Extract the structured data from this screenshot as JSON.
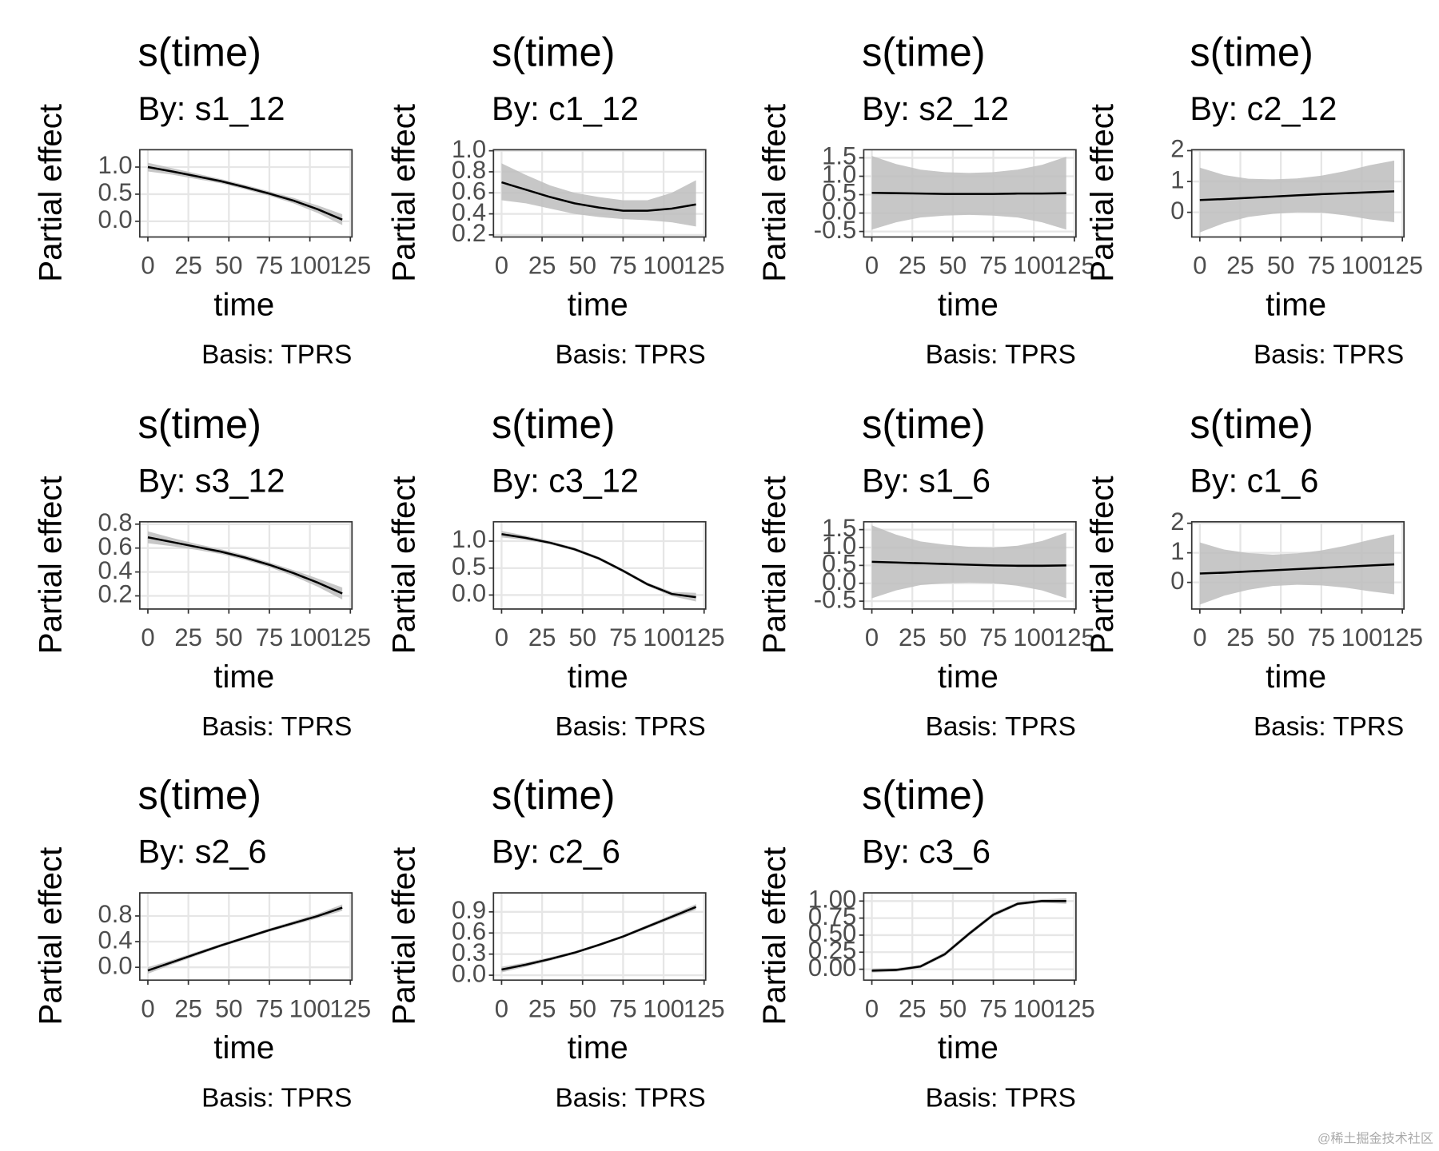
{
  "chart_data": [
    {
      "type": "line",
      "title": "s(time)",
      "subtitle": "By: s1_12",
      "xlabel": "time",
      "ylabel": "Partial effect",
      "caption": "Basis: TPRS",
      "color": "#000000",
      "band_color": "#bdbdbd",
      "grid": true,
      "x": [
        0,
        15,
        30,
        45,
        60,
        75,
        90,
        105,
        120
      ],
      "values": [
        1.0,
        0.92,
        0.83,
        0.74,
        0.63,
        0.51,
        0.38,
        0.22,
        0.03
      ],
      "lower": [
        0.92,
        0.86,
        0.78,
        0.7,
        0.59,
        0.47,
        0.33,
        0.15,
        -0.07
      ],
      "upper": [
        1.08,
        0.98,
        0.88,
        0.78,
        0.67,
        0.55,
        0.43,
        0.29,
        0.13
      ],
      "xlim": [
        -5,
        126
      ],
      "xticks": [
        0,
        25,
        50,
        75,
        100,
        125
      ],
      "ylim": [
        -0.29,
        1.32
      ],
      "yticks": [
        {
          "value": 0,
          "label": "0.0"
        },
        0.5,
        {
          "value": 1,
          "label": "1.0"
        }
      ]
    },
    {
      "type": "line",
      "title": "s(time)",
      "subtitle": "By: c1_12",
      "xlabel": "time",
      "ylabel": "Partial effect",
      "caption": "Basis: TPRS",
      "color": "#000000",
      "band_color": "#bdbdbd",
      "grid": true,
      "x": [
        0,
        15,
        30,
        45,
        60,
        75,
        90,
        105,
        120
      ],
      "values": [
        0.7,
        0.63,
        0.56,
        0.5,
        0.46,
        0.43,
        0.43,
        0.45,
        0.49
      ],
      "lower": [
        0.53,
        0.5,
        0.45,
        0.4,
        0.37,
        0.35,
        0.34,
        0.32,
        0.28
      ],
      "upper": [
        0.88,
        0.77,
        0.67,
        0.6,
        0.56,
        0.53,
        0.53,
        0.6,
        0.72
      ],
      "xlim": [
        -5,
        126
      ],
      "xticks": [
        0,
        25,
        50,
        75,
        100,
        125
      ],
      "ylim": [
        0.18,
        1.01
      ],
      "yticks": [
        0.2,
        0.4,
        0.6,
        0.8,
        {
          "value": 1,
          "label": "1.0"
        }
      ]
    },
    {
      "type": "line",
      "title": "s(time)",
      "subtitle": "By: s2_12",
      "xlabel": "time",
      "ylabel": "Partial effect",
      "caption": "Basis: TPRS",
      "color": "#000000",
      "band_color": "#bdbdbd",
      "grid": true,
      "x": [
        0,
        15,
        30,
        45,
        60,
        75,
        90,
        105,
        120
      ],
      "values": [
        0.55,
        0.54,
        0.53,
        0.52,
        0.52,
        0.52,
        0.53,
        0.53,
        0.54
      ],
      "lower": [
        -0.45,
        -0.25,
        -0.12,
        -0.07,
        -0.05,
        -0.07,
        -0.12,
        -0.25,
        -0.45
      ],
      "upper": [
        1.55,
        1.33,
        1.18,
        1.11,
        1.09,
        1.11,
        1.18,
        1.31,
        1.53
      ],
      "xlim": [
        -5,
        126
      ],
      "xticks": [
        0,
        25,
        50,
        75,
        100,
        125
      ],
      "ylim": [
        -0.65,
        1.72
      ],
      "yticks": [
        -0.5,
        {
          "value": 0,
          "label": "0.0"
        },
        0.5,
        {
          "value": 1,
          "label": "1.0"
        },
        1.5
      ]
    },
    {
      "type": "line",
      "title": "s(time)",
      "subtitle": "By: c2_12",
      "xlabel": "time",
      "ylabel": "Partial effect",
      "caption": "Basis: TPRS",
      "color": "#000000",
      "band_color": "#bdbdbd",
      "grid": true,
      "x": [
        0,
        15,
        30,
        45,
        60,
        75,
        90,
        105,
        120
      ],
      "values": [
        0.4,
        0.43,
        0.47,
        0.51,
        0.55,
        0.59,
        0.62,
        0.65,
        0.68
      ],
      "lower": [
        -0.65,
        -0.35,
        -0.15,
        -0.05,
        0.0,
        -0.01,
        -0.1,
        -0.23,
        -0.32
      ],
      "upper": [
        1.45,
        1.21,
        1.09,
        1.07,
        1.1,
        1.19,
        1.34,
        1.53,
        1.68
      ],
      "xlim": [
        -5,
        126
      ],
      "xticks": [
        0,
        25,
        50,
        75,
        100,
        125
      ],
      "ylim": [
        -0.8,
        2.03
      ],
      "yticks": [
        0,
        1,
        2
      ]
    },
    {
      "type": "line",
      "title": "s(time)",
      "subtitle": "By: s3_12",
      "xlabel": "time",
      "ylabel": "Partial effect",
      "caption": "Basis: TPRS",
      "color": "#000000",
      "band_color": "#bdbdbd",
      "grid": true,
      "x": [
        0,
        15,
        30,
        45,
        60,
        75,
        90,
        105,
        120
      ],
      "values": [
        0.69,
        0.65,
        0.61,
        0.57,
        0.52,
        0.46,
        0.39,
        0.31,
        0.22
      ],
      "lower": [
        0.64,
        0.615,
        0.585,
        0.55,
        0.5,
        0.44,
        0.365,
        0.275,
        0.17
      ],
      "upper": [
        0.74,
        0.685,
        0.635,
        0.59,
        0.54,
        0.48,
        0.415,
        0.345,
        0.27
      ],
      "xlim": [
        -5,
        126
      ],
      "xticks": [
        0,
        25,
        50,
        75,
        100,
        125
      ],
      "ylim": [
        0.09,
        0.82
      ],
      "yticks": [
        0.2,
        0.4,
        0.6,
        0.8
      ]
    },
    {
      "type": "line",
      "title": "s(time)",
      "subtitle": "By: c3_12",
      "xlabel": "time",
      "ylabel": "Partial effect",
      "caption": "Basis: TPRS",
      "color": "#000000",
      "band_color": "#bdbdbd",
      "grid": true,
      "x": [
        0,
        15,
        30,
        45,
        60,
        75,
        90,
        105,
        120
      ],
      "values": [
        1.13,
        1.06,
        0.97,
        0.85,
        0.68,
        0.45,
        0.2,
        0.02,
        -0.04
      ],
      "lower": [
        1.07,
        1.02,
        0.94,
        0.82,
        0.65,
        0.42,
        0.17,
        -0.02,
        -0.12
      ],
      "upper": [
        1.19,
        1.1,
        1.0,
        0.88,
        0.71,
        0.48,
        0.23,
        0.06,
        0.04
      ],
      "xlim": [
        -5,
        126
      ],
      "xticks": [
        0,
        25,
        50,
        75,
        100,
        125
      ],
      "ylim": [
        -0.26,
        1.36
      ],
      "yticks": [
        {
          "value": 0,
          "label": "0.0"
        },
        0.5,
        {
          "value": 1,
          "label": "1.0"
        }
      ]
    },
    {
      "type": "line",
      "title": "s(time)",
      "subtitle": "By: s1_6",
      "xlabel": "time",
      "ylabel": "Partial effect",
      "caption": "Basis: TPRS",
      "color": "#000000",
      "band_color": "#bdbdbd",
      "grid": true,
      "x": [
        0,
        15,
        30,
        45,
        60,
        75,
        90,
        105,
        120
      ],
      "values": [
        0.6,
        0.58,
        0.56,
        0.54,
        0.52,
        0.5,
        0.49,
        0.49,
        0.5
      ],
      "lower": [
        -0.42,
        -0.2,
        -0.05,
        0,
        0.02,
        0,
        -0.07,
        -0.2,
        -0.42
      ],
      "upper": [
        1.62,
        1.36,
        1.17,
        1.08,
        1.02,
        1.0,
        1.05,
        1.18,
        1.42
      ],
      "xlim": [
        -5,
        126
      ],
      "xticks": [
        0,
        25,
        50,
        75,
        100,
        125
      ],
      "ylim": [
        -0.72,
        1.72
      ],
      "yticks": [
        -0.5,
        {
          "value": 0,
          "label": "0.0"
        },
        0.5,
        {
          "value": 1,
          "label": "1.0"
        },
        1.5
      ]
    },
    {
      "type": "line",
      "title": "s(time)",
      "subtitle": "By: c1_6",
      "xlabel": "time",
      "ylabel": "Partial effect",
      "caption": "Basis: TPRS",
      "color": "#000000",
      "band_color": "#bdbdbd",
      "grid": true,
      "x": [
        0,
        15,
        30,
        45,
        60,
        75,
        90,
        105,
        120
      ],
      "values": [
        0.3,
        0.33,
        0.37,
        0.41,
        0.45,
        0.49,
        0.53,
        0.57,
        0.61
      ],
      "lower": [
        -0.75,
        -0.45,
        -0.25,
        -0.12,
        -0.08,
        -0.1,
        -0.18,
        -0.3,
        -0.4
      ],
      "upper": [
        1.35,
        1.11,
        0.99,
        0.94,
        0.98,
        1.08,
        1.24,
        1.44,
        1.62
      ],
      "xlim": [
        -5,
        126
      ],
      "xticks": [
        0,
        25,
        50,
        75,
        100,
        125
      ],
      "ylim": [
        -0.9,
        2.05
      ],
      "yticks": [
        0,
        1,
        2
      ]
    },
    {
      "type": "line",
      "title": "s(time)",
      "subtitle": "By: s2_6",
      "xlabel": "time",
      "ylabel": "Partial effect",
      "caption": "Basis: TPRS",
      "color": "#000000",
      "band_color": "#bdbdbd",
      "grid": true,
      "x": [
        0,
        15,
        30,
        45,
        60,
        75,
        90,
        105,
        120
      ],
      "values": [
        -0.05,
        0.08,
        0.21,
        0.34,
        0.46,
        0.58,
        0.69,
        0.8,
        0.93
      ],
      "lower": [
        -0.1,
        0.045,
        0.18,
        0.315,
        0.435,
        0.555,
        0.66,
        0.765,
        0.88
      ],
      "upper": [
        0,
        0.115,
        0.24,
        0.365,
        0.485,
        0.605,
        0.72,
        0.835,
        0.98
      ],
      "xlim": [
        -5,
        126
      ],
      "xticks": [
        0,
        25,
        50,
        75,
        100,
        125
      ],
      "ylim": [
        -0.2,
        1.16
      ],
      "yticks": [
        {
          "value": 0,
          "label": "0.0"
        },
        0.4,
        0.8
      ]
    },
    {
      "type": "line",
      "title": "s(time)",
      "subtitle": "By: c2_6",
      "xlabel": "time",
      "ylabel": "Partial effect",
      "caption": "Basis: TPRS",
      "color": "#000000",
      "band_color": "#bdbdbd",
      "grid": true,
      "x": [
        0,
        15,
        30,
        45,
        60,
        75,
        90,
        105,
        120
      ],
      "values": [
        0.08,
        0.15,
        0.23,
        0.32,
        0.43,
        0.55,
        0.69,
        0.83,
        0.97
      ],
      "lower": [
        0.04,
        0.12,
        0.205,
        0.3,
        0.41,
        0.53,
        0.665,
        0.8,
        0.93
      ],
      "upper": [
        0.12,
        0.18,
        0.255,
        0.34,
        0.45,
        0.57,
        0.715,
        0.86,
        1.01
      ],
      "xlim": [
        -5,
        126
      ],
      "xticks": [
        0,
        25,
        50,
        75,
        100,
        125
      ],
      "ylim": [
        -0.07,
        1.17
      ],
      "yticks": [
        {
          "value": 0,
          "label": "0.0"
        },
        0.3,
        0.6,
        0.9
      ]
    },
    {
      "type": "line",
      "title": "s(time)",
      "subtitle": "By: c3_6",
      "xlabel": "time",
      "ylabel": "Partial effect",
      "caption": "Basis: TPRS",
      "color": "#000000",
      "band_color": "#bdbdbd",
      "grid": true,
      "x": [
        0,
        15,
        30,
        45,
        60,
        75,
        90,
        105,
        120
      ],
      "values": [
        -0.02,
        -0.01,
        0.04,
        0.22,
        0.52,
        0.8,
        0.96,
        1.0,
        1.0
      ],
      "lower": [
        -0.05,
        -0.035,
        0.015,
        0.19,
        0.49,
        0.77,
        0.935,
        0.975,
        0.96
      ],
      "upper": [
        0.01,
        0.015,
        0.065,
        0.25,
        0.55,
        0.83,
        0.985,
        1.025,
        1.04
      ],
      "xlim": [
        -5,
        126
      ],
      "xticks": [
        0,
        25,
        50,
        75,
        100,
        125
      ],
      "ylim": [
        -0.16,
        1.12
      ],
      "yticks": [
        {
          "value": 0,
          "label": "0.00"
        },
        0.25,
        {
          "value": 0.5,
          "label": "0.50"
        },
        0.75,
        {
          "value": 1,
          "label": "1.00"
        }
      ]
    }
  ],
  "watermark": "@稀土掘金技术社区"
}
